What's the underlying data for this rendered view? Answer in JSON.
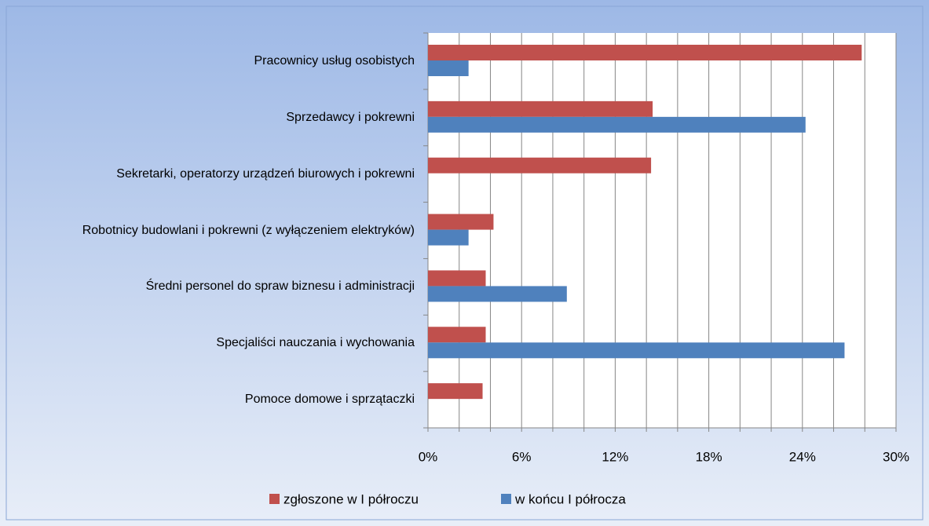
{
  "chart_data": {
    "type": "barh",
    "categories": [
      "Pracownicy usług osobistych",
      "Sprzedawcy i pokrewni",
      "Sekretarki, operatorzy urządzeń biurowych i pokrewni",
      "Robotnicy budowlani i pokrewni (z wyłączeniem elektryków)",
      "Średni personel do spraw biznesu i administracji",
      "Specjaliści nauczania i wychowania",
      "Pomoce domowe i sprzątaczki"
    ],
    "series": [
      {
        "name": "zgłoszone w I półroczu",
        "color": "#c0504d",
        "values": [
          27.8,
          14.4,
          14.3,
          4.2,
          3.7,
          3.7,
          3.5
        ]
      },
      {
        "name": "w końcu I półrocza",
        "color": "#4f81bd",
        "values": [
          2.6,
          24.2,
          null,
          2.6,
          8.9,
          26.7,
          null
        ]
      }
    ],
    "xlim": [
      0,
      30
    ],
    "xticks": [
      {
        "value": 0,
        "label": "0%"
      },
      {
        "value": 6,
        "label": "6%"
      },
      {
        "value": 12,
        "label": "12%"
      },
      {
        "value": 18,
        "label": "18%"
      },
      {
        "value": 24,
        "label": "24%"
      },
      {
        "value": 30,
        "label": "30%"
      }
    ],
    "minor_xticks": [
      0,
      2,
      4,
      6,
      8,
      10,
      12,
      14,
      16,
      18,
      20,
      22,
      24,
      26,
      28,
      30
    ],
    "grid": true,
    "legend": "bottom"
  }
}
